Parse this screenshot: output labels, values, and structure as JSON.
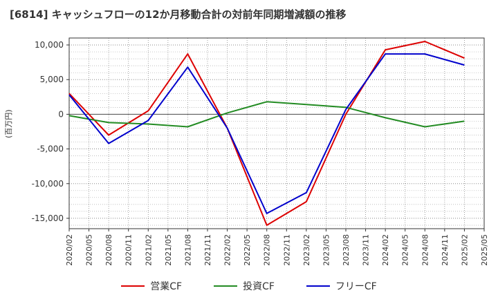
{
  "title": "[6814]  キャッシュフローの12か月移動合計の対前年同期増減額の推移",
  "chart_data": {
    "type": "line",
    "title": "[6814]  キャッシュフローの12か月移動合計の対前年同期増減額の推移",
    "ylabel": "(百万円)",
    "xlabel": "",
    "ylim": [
      -16500,
      11000
    ],
    "yticks": [
      10000,
      5000,
      0,
      -5000,
      -10000,
      -15000
    ],
    "ytick_labels": [
      "10,000",
      "5,000",
      "0",
      "-5,000",
      "-10,000",
      "-15,000"
    ],
    "x_tick_labels": [
      "2020/02",
      "2020/05",
      "2020/08",
      "2020/11",
      "2021/02",
      "2021/05",
      "2021/08",
      "2021/11",
      "2022/02",
      "2022/05",
      "2022/08",
      "2022/11",
      "2023/02",
      "2023/05",
      "2023/08",
      "2023/11",
      "2024/02",
      "2024/05",
      "2024/08",
      "2024/11",
      "2025/02",
      "2025/05"
    ],
    "grid": true,
    "legend_position": "bottom",
    "series": [
      {
        "name": "営業CF",
        "color": "#dd0000",
        "points": [
          [
            "2020/02",
            3000
          ],
          [
            "2020/08",
            -3000
          ],
          [
            "2021/02",
            500
          ],
          [
            "2021/08",
            8700
          ],
          [
            "2022/02",
            -2000
          ],
          [
            "2022/08",
            -16000
          ],
          [
            "2023/02",
            -12600
          ],
          [
            "2023/08",
            0
          ],
          [
            "2024/02",
            9300
          ],
          [
            "2024/08",
            10500
          ],
          [
            "2025/02",
            8100
          ]
        ]
      },
      {
        "name": "投資CF",
        "color": "#228b22",
        "points": [
          [
            "2020/02",
            -200
          ],
          [
            "2020/08",
            -1200
          ],
          [
            "2021/02",
            -1400
          ],
          [
            "2021/08",
            -1800
          ],
          [
            "2022/02",
            200
          ],
          [
            "2022/08",
            1800
          ],
          [
            "2023/02",
            1400
          ],
          [
            "2023/08",
            1000
          ],
          [
            "2024/02",
            -500
          ],
          [
            "2024/08",
            -1800
          ],
          [
            "2025/02",
            -1000
          ]
        ]
      },
      {
        "name": "フリーCF",
        "color": "#0000cc",
        "points": [
          [
            "2020/02",
            2800
          ],
          [
            "2020/08",
            -4200
          ],
          [
            "2021/02",
            -900
          ],
          [
            "2021/08",
            6800
          ],
          [
            "2022/02",
            -2000
          ],
          [
            "2022/08",
            -14300
          ],
          [
            "2023/02",
            -11300
          ],
          [
            "2023/08",
            700
          ],
          [
            "2024/02",
            8700
          ],
          [
            "2024/08",
            8700
          ],
          [
            "2025/02",
            7100
          ]
        ]
      }
    ]
  }
}
